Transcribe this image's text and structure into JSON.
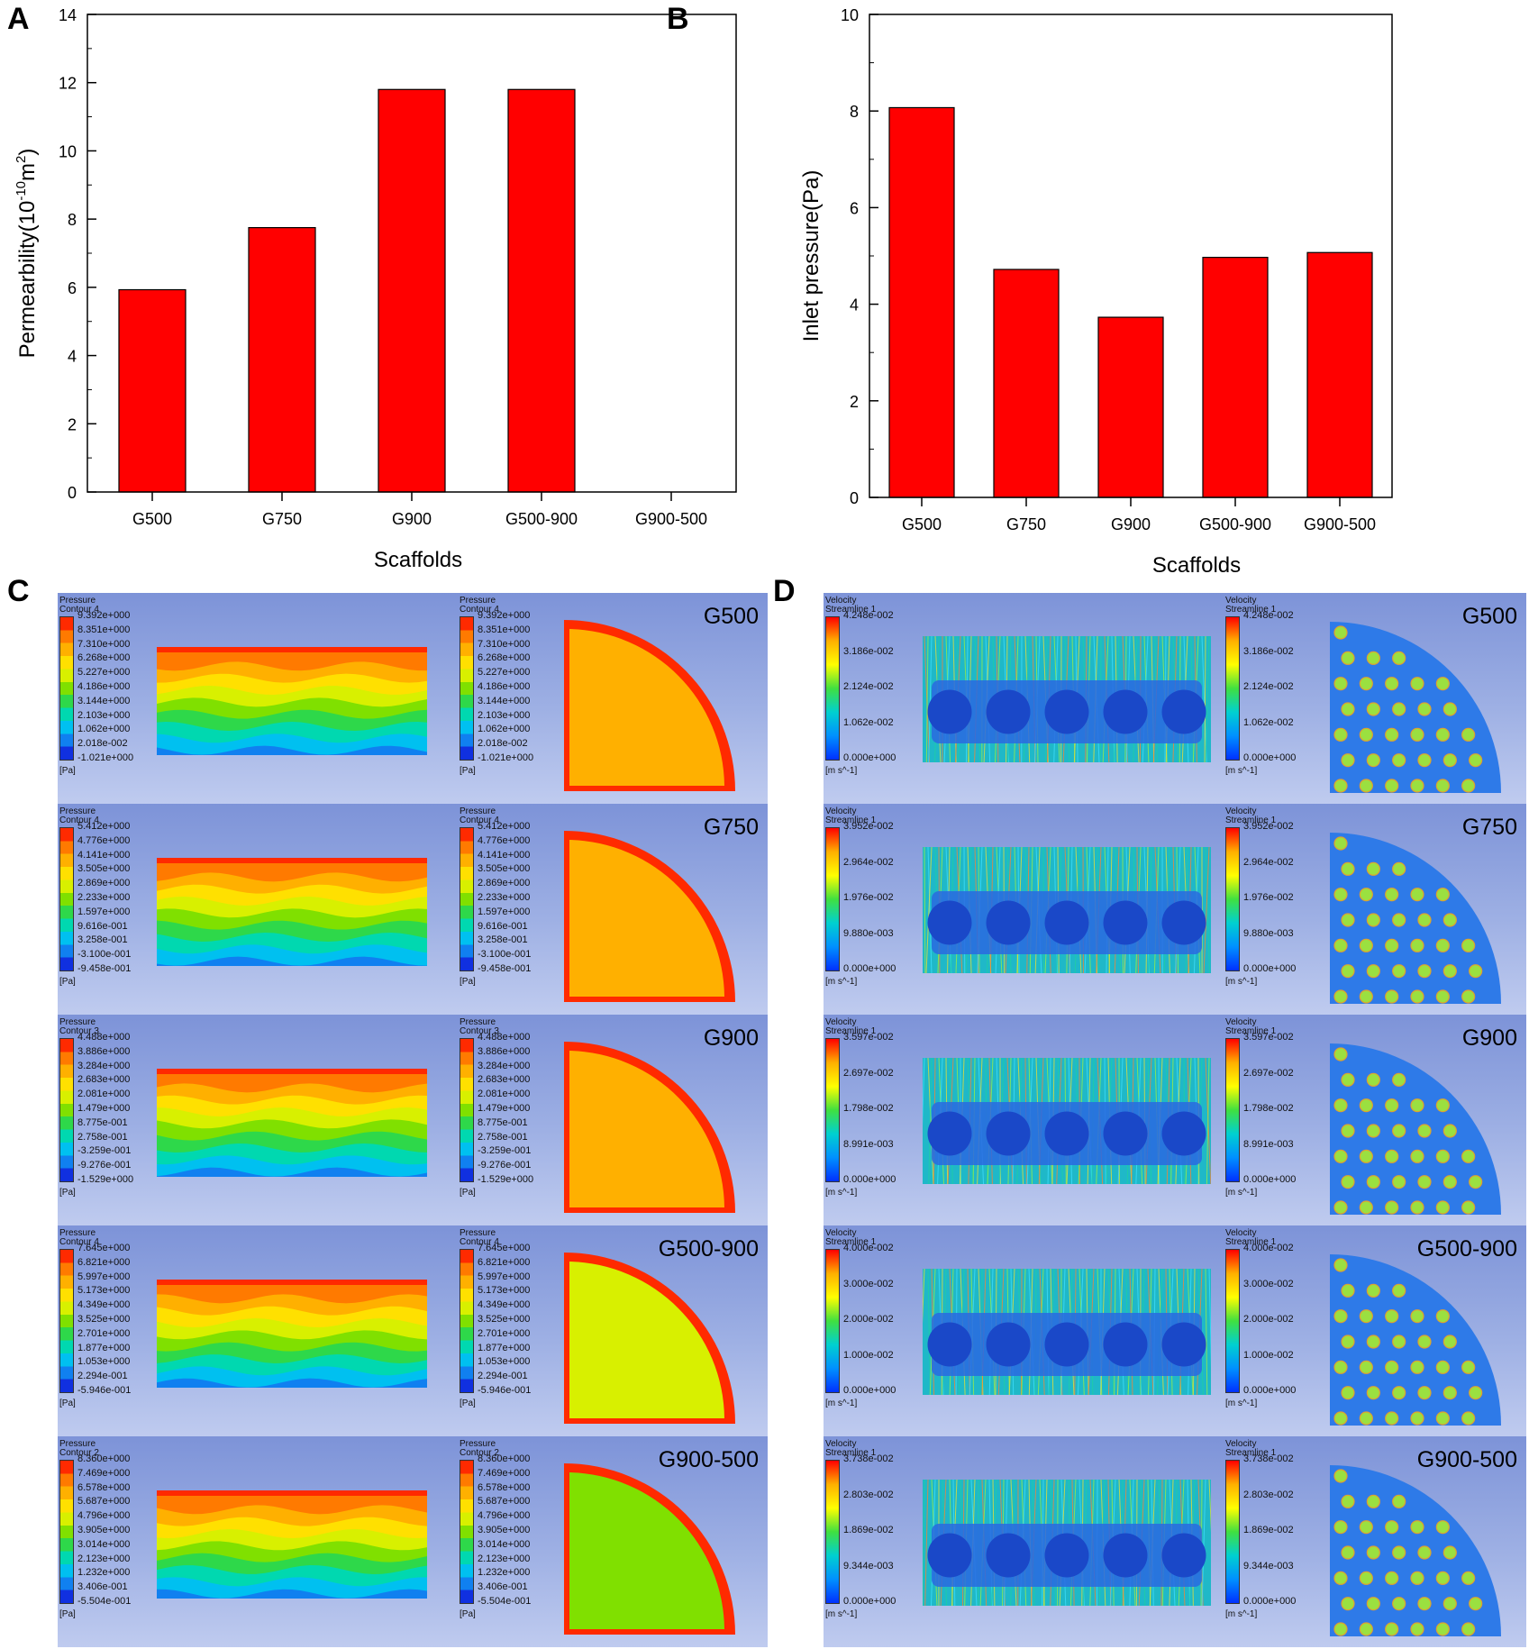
{
  "panel_letters": [
    "A",
    "B",
    "C",
    "D"
  ],
  "chart_data": [
    {
      "type": "bar",
      "panel": "A",
      "categories": [
        "G500",
        "G750",
        "G900",
        "G500-900",
        "G900-500"
      ],
      "values": [
        5.93,
        7.75,
        11.8,
        11.8,
        0
      ],
      "xlabel": "Scaffolds",
      "ylabel": "Permearbility(10",
      "ylabel_sup": "-10",
      "ylabel_unit": "m",
      "ylabel_sup2": "2",
      "ylabel_end": ")",
      "ylim": [
        0,
        14
      ],
      "yticks": [
        "0",
        "2",
        "4",
        "6",
        "8",
        "10",
        "12",
        "14"
      ],
      "bar_color": "#ff0000"
    },
    {
      "type": "bar",
      "panel": "B",
      "categories": [
        "G500",
        "G750",
        "G900",
        "G500-900",
        "G900-500"
      ],
      "values": [
        8.07,
        4.72,
        3.73,
        4.97,
        5.07
      ],
      "xlabel": "Scaffolds",
      "ylabel": "Inlet pressure(Pa)",
      "ylim": [
        0,
        10
      ],
      "yticks": [
        "0",
        "2",
        "4",
        "6",
        "8",
        "10"
      ],
      "bar_color": "#ff0000"
    }
  ],
  "pressure_rows": [
    {
      "label": "G500",
      "title1": "Pressure",
      "title2": "Contour 4",
      "ticks": [
        "9.392e+000",
        "8.351e+000",
        "7.310e+000",
        "6.268e+000",
        "5.227e+000",
        "4.186e+000",
        "3.144e+000",
        "2.103e+000",
        "1.062e+000",
        "2.018e-002",
        "-1.021e+000"
      ],
      "unit": "[Pa]"
    },
    {
      "label": "G750",
      "title1": "Pressure",
      "title2": "Contour 4",
      "ticks": [
        "5.412e+000",
        "4.776e+000",
        "4.141e+000",
        "3.505e+000",
        "2.869e+000",
        "2.233e+000",
        "1.597e+000",
        "9.616e-001",
        "3.258e-001",
        "-3.100e-001",
        "-9.458e-001"
      ],
      "unit": "[Pa]"
    },
    {
      "label": "G900",
      "title1": "Pressure",
      "title2": "Contour 3",
      "ticks": [
        "4.488e+000",
        "3.886e+000",
        "3.284e+000",
        "2.683e+000",
        "2.081e+000",
        "1.479e+000",
        "8.775e-001",
        "2.758e-001",
        "-3.259e-001",
        "-9.276e-001",
        "-1.529e+000"
      ],
      "unit": "[Pa]"
    },
    {
      "label": "G500-900",
      "title1": "Pressure",
      "title2": "Contour 4",
      "ticks": [
        "7.645e+000",
        "6.821e+000",
        "5.997e+000",
        "5.173e+000",
        "4.349e+000",
        "3.525e+000",
        "2.701e+000",
        "1.877e+000",
        "1.053e+000",
        "2.294e-001",
        "-5.946e-001"
      ],
      "unit": "[Pa]"
    },
    {
      "label": "G900-500",
      "title1": "Pressure",
      "title2": "Contour 2",
      "ticks": [
        "8.360e+000",
        "7.469e+000",
        "6.578e+000",
        "5.687e+000",
        "4.796e+000",
        "3.905e+000",
        "3.014e+000",
        "2.123e+000",
        "1.232e+000",
        "3.406e-001",
        "-5.504e-001"
      ],
      "unit": "[Pa]"
    }
  ],
  "velocity_rows": [
    {
      "label": "G500",
      "title1": "Velocity",
      "title2": "Streamline 1",
      "ticks": [
        "4.248e-002",
        "3.186e-002",
        "2.124e-002",
        "1.062e-002",
        "0.000e+000"
      ],
      "unit": "[m s^-1]"
    },
    {
      "label": "G750",
      "title1": "Velocity",
      "title2": "Streamline 1",
      "ticks": [
        "3.952e-002",
        "2.964e-002",
        "1.976e-002",
        "9.880e-003",
        "0.000e+000"
      ],
      "unit": "[m s^-1]"
    },
    {
      "label": "G900",
      "title1": "Velocity",
      "title2": "Streamline 1",
      "ticks": [
        "3.597e-002",
        "2.697e-002",
        "1.798e-002",
        "8.991e-003",
        "0.000e+000"
      ],
      "unit": "[m s^-1]"
    },
    {
      "label": "G500-900",
      "title1": "Velocity",
      "title2": "Streamline 1",
      "ticks": [
        "4.000e-002",
        "3.000e-002",
        "2.000e-002",
        "1.000e-002",
        "0.000e+000"
      ],
      "unit": "[m s^-1]"
    },
    {
      "label": "G900-500",
      "title1": "Velocity",
      "title2": "Streamline 1",
      "ticks": [
        "3.738e-002",
        "2.803e-002",
        "1.869e-002",
        "9.344e-003",
        "0.000e+000"
      ],
      "unit": "[m s^-1]"
    }
  ],
  "colors": {
    "pressure_scale": [
      "#ff2a00",
      "#ff7a00",
      "#ffb000",
      "#ffe000",
      "#d8f000",
      "#80e000",
      "#2ed84a",
      "#00d8b0",
      "#00c0f0",
      "#1080f0",
      "#1030e0"
    ],
    "velocity_gradient": [
      "#ff0000",
      "#ffb000",
      "#ffff00",
      "#40e040",
      "#00d0d0",
      "#0090ff",
      "#0030ff"
    ],
    "panel_bg": "#8fa3de"
  }
}
